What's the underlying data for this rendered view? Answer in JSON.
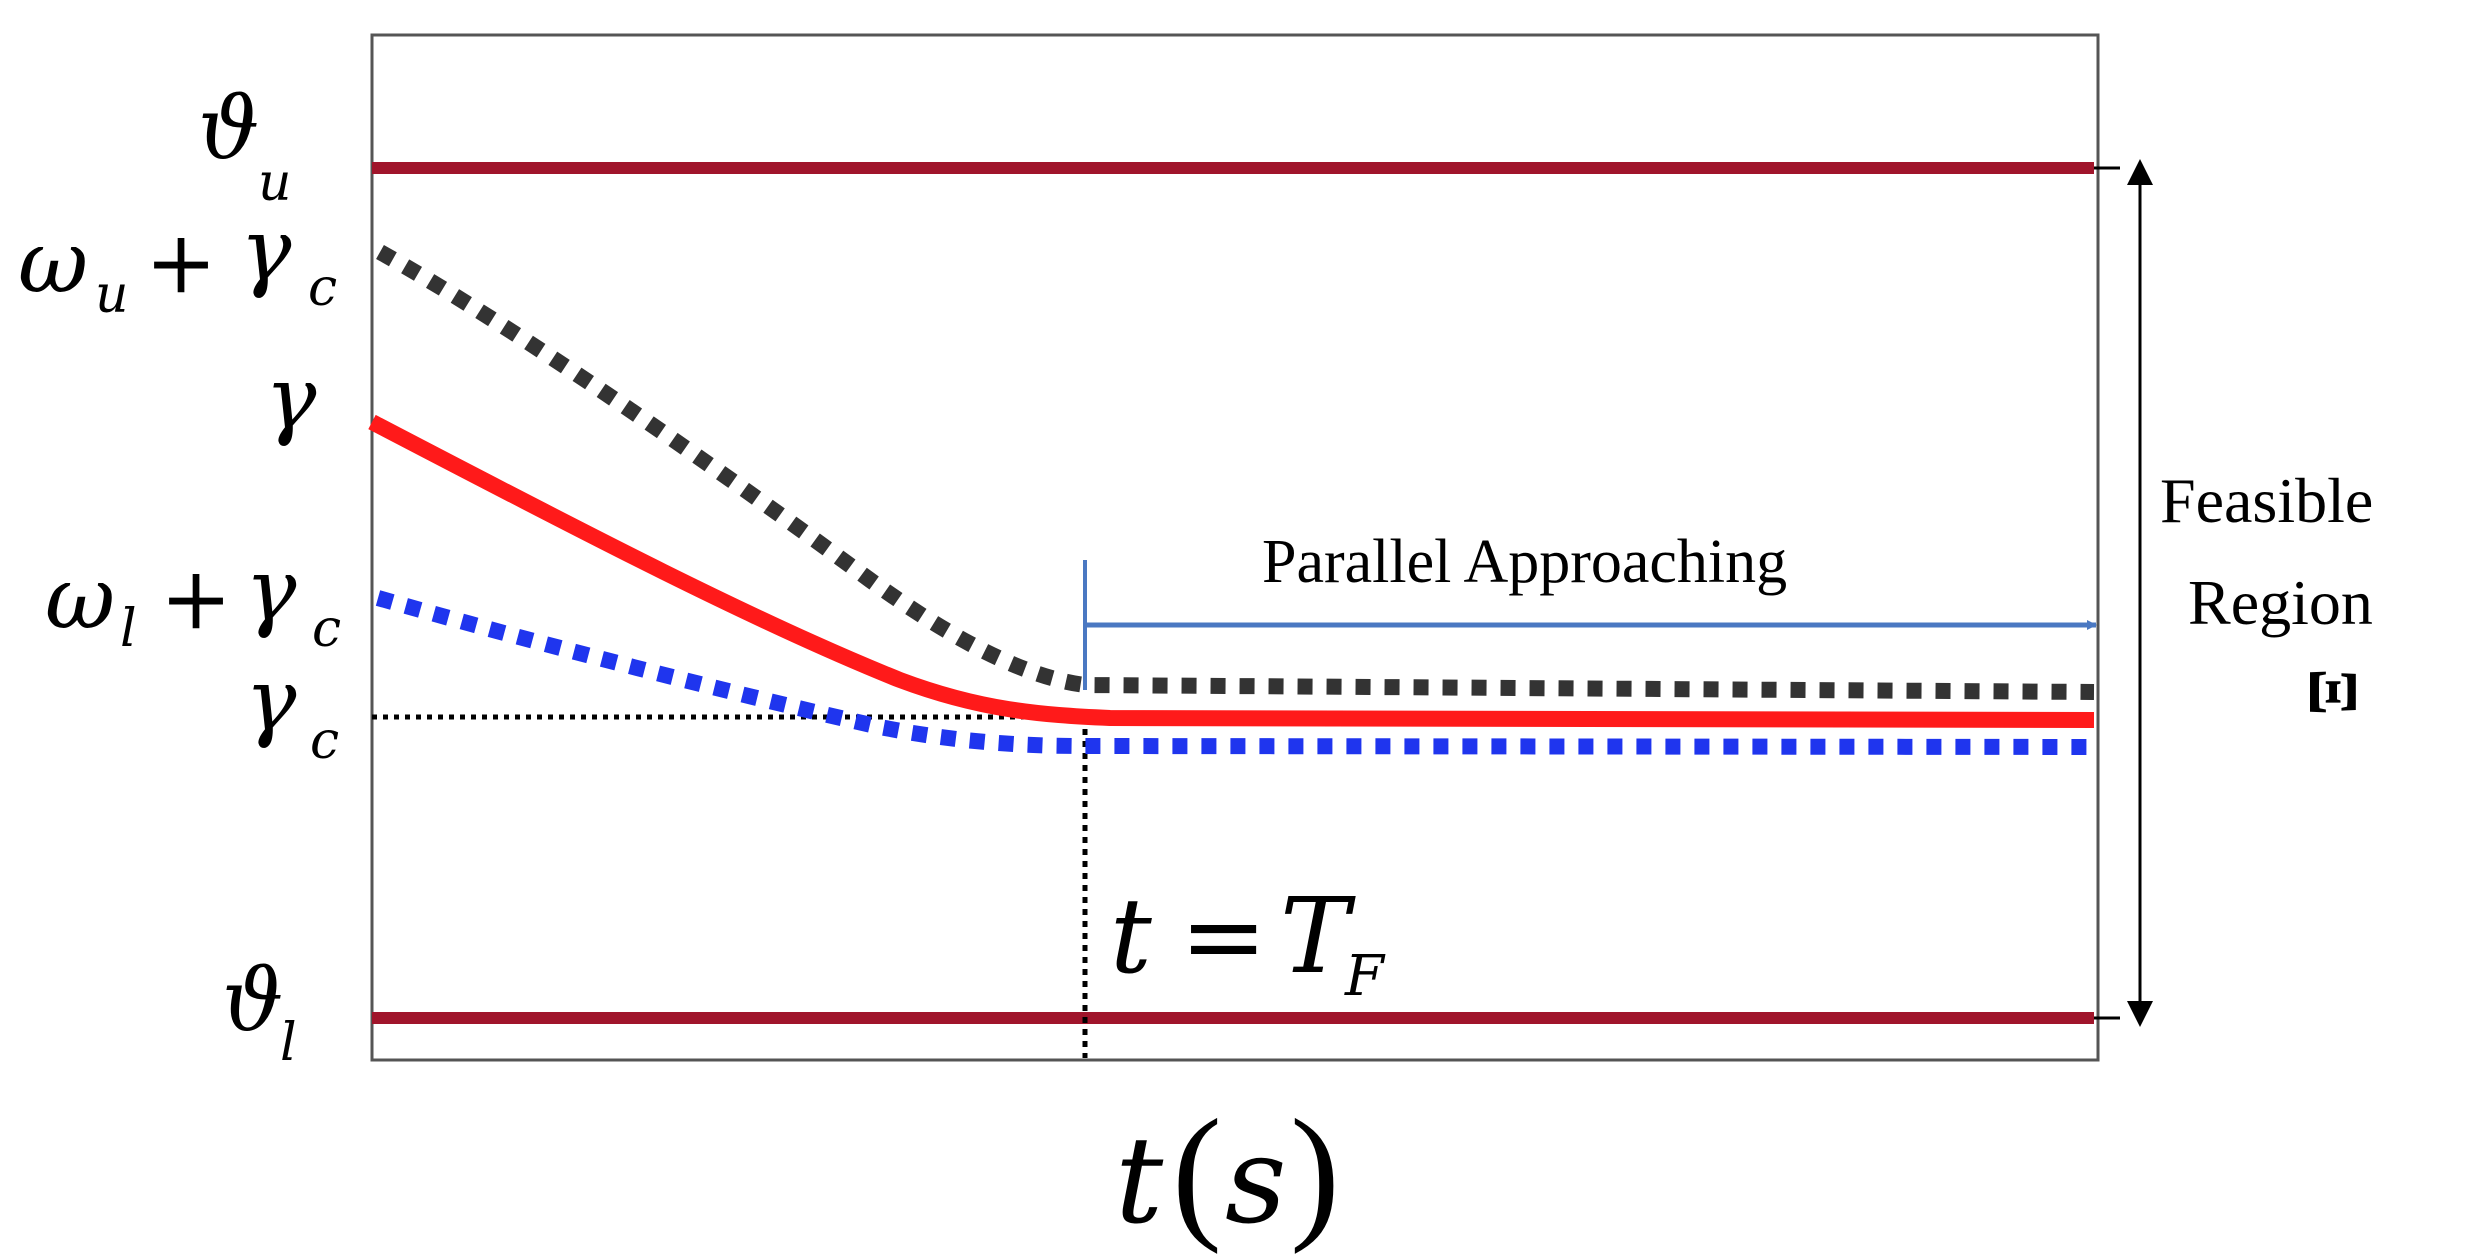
{
  "labels": {
    "theta_u": {
      "main": "ϑ",
      "sub": "u"
    },
    "omega_u_gamma_c": {
      "omega": "ω",
      "omega_sub": "u",
      "plus": "+",
      "gamma": "γ",
      "gamma_sub": "c"
    },
    "gamma": {
      "main": "γ"
    },
    "omega_l_gamma_c": {
      "omega": "ω",
      "omega_sub": "l",
      "plus": "+",
      "gamma": "γ",
      "gamma_sub": "c"
    },
    "gamma_c": {
      "main": "γ",
      "sub": "c"
    },
    "theta_l": {
      "main": "ϑ",
      "sub": "l"
    },
    "parallel_approaching": "Parallel Approaching",
    "feasible_line1": "Feasible",
    "feasible_line2": "Region",
    "feasible_symbol": "Ξ",
    "t_equals_TF": {
      "t": "t",
      "eq": "=",
      "T": "T",
      "T_sub": "F"
    },
    "x_axis": {
      "t": "t",
      "lparen": "(",
      "s": "s",
      "rparen": ")"
    }
  },
  "colors": {
    "bound_lines": "#a0152b",
    "gamma_curve": "#ff1a1a",
    "upper_dotted": "#333333",
    "lower_dotted": "#1f35ee",
    "arrow": "#4a78c2",
    "axis_frame": "#555555",
    "text": "#000000"
  }
}
